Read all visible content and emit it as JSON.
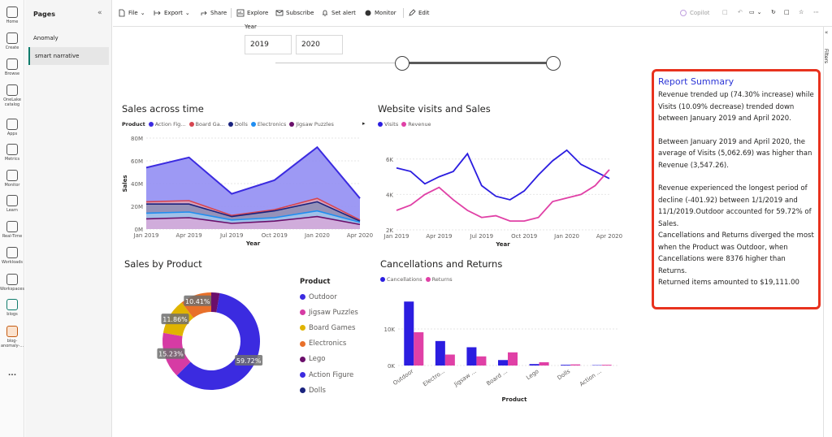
{
  "rail": [
    {
      "label": "Home",
      "icon": "home-icon"
    },
    {
      "label": "Create",
      "icon": "create-icon"
    },
    {
      "label": "Browse",
      "icon": "browse-icon"
    },
    {
      "label": "OneLake catalog",
      "icon": "onelake-icon"
    },
    {
      "label": "Apps",
      "icon": "apps-icon"
    },
    {
      "label": "Metrics",
      "icon": "metrics-icon"
    },
    {
      "label": "Monitor",
      "icon": "monitor-icon"
    },
    {
      "label": "Learn",
      "icon": "learn-icon"
    },
    {
      "label": "Real-Time",
      "icon": "realtime-icon"
    },
    {
      "label": "Workloads",
      "icon": "workloads-icon"
    },
    {
      "label": "Workspaces",
      "icon": "workspaces-icon"
    },
    {
      "label": "blogs",
      "icon": "blogs-icon"
    },
    {
      "label": "blog-anomaly-...",
      "icon": "report-icon"
    },
    {
      "label": "...",
      "icon": "more-icon"
    }
  ],
  "pages": {
    "title": "Pages",
    "items": [
      "Anomaly",
      "smart narrative"
    ],
    "active": 1
  },
  "toolbar": {
    "file": "File",
    "export": "Export",
    "share": "Share",
    "explore": "Explore",
    "subscribe": "Subscribe",
    "set_alert": "Set alert",
    "monitor": "Monitor",
    "edit": "Edit",
    "copilot": "Copilot"
  },
  "filters_label": "Filters",
  "year_slicer": {
    "label": "Year",
    "from": "2019",
    "to": "2020"
  },
  "sales_time": {
    "title": "Sales across time",
    "legend_title": "Product",
    "legend": [
      {
        "name": "Action Fig...",
        "color": "#3b2be0"
      },
      {
        "name": "Board Ga...",
        "color": "#d64550"
      },
      {
        "name": "Dolls",
        "color": "#1a237e"
      },
      {
        "name": "Electronics",
        "color": "#1f8ef1"
      },
      {
        "name": "Jigsaw Puzzles",
        "color": "#6a0f6a"
      }
    ],
    "ylabel": "Sales",
    "xlabel": "Year",
    "yticks": [
      "80M",
      "60M",
      "40M",
      "20M",
      "0M"
    ],
    "xticks": [
      "Jan 2019",
      "Apr 2019",
      "Jul 2019",
      "Oct 2019",
      "Jan 2020",
      "Apr 2020"
    ]
  },
  "visits_sales": {
    "title": "Website visits and Sales",
    "legend": [
      {
        "name": "Visits",
        "color": "#2b1de0"
      },
      {
        "name": "Revenue",
        "color": "#e040a6"
      }
    ],
    "yticks": [
      "6K",
      "4K",
      "2K"
    ],
    "xticks": [
      "Jan 2019",
      "Apr 2019",
      "Jul 2019",
      "Oct 2019",
      "Jan 2020",
      "Apr 2020"
    ],
    "xlabel": "Year"
  },
  "sales_product": {
    "title": "Sales by Product",
    "legend_title": "Product",
    "legend": [
      {
        "name": "Outdoor",
        "color": "#3b2be0"
      },
      {
        "name": "Jigsaw Puzzles",
        "color": "#d63ba4"
      },
      {
        "name": "Board Games",
        "color": "#e0b400"
      },
      {
        "name": "Electronics",
        "color": "#e8702a"
      },
      {
        "name": "Lego",
        "color": "#6b0f6b"
      },
      {
        "name": "Action Figure",
        "color": "#3b2be0"
      },
      {
        "name": "Dolls",
        "color": "#1a237e"
      }
    ],
    "slice_labels": [
      "59.72%",
      "15.23%",
      "11.86%",
      "10.41%"
    ]
  },
  "cancellations": {
    "title": "Cancellations and Returns",
    "legend": [
      {
        "name": "Cancellations",
        "color": "#2b1de0"
      },
      {
        "name": "Returns",
        "color": "#e040a6"
      }
    ],
    "yticks": [
      "10K",
      "0K"
    ],
    "xticks": [
      "Outdoor",
      "Electro...",
      "Jigsaw ...",
      "Board ...",
      "Lego",
      "Dolls",
      "Action ..."
    ],
    "xlabel": "Product"
  },
  "summary": {
    "title": "Report Summary",
    "p1": "Revenue trended up (74.30% increase) while Visits (10.09% decrease) trended down between January 2019 and April 2020.",
    "p2": "Between January 2019 and April 2020, the average of Visits (5,062.69) was higher than Revenue (3,547.26).",
    "p3": "Revenue experienced the longest period of decline (-401.92) between 1/1/2019 and 11/1/2019.Outdoor accounted for 59.72% of Sales.",
    "p4": "Cancellations and Returns diverged the most when the Product was Outdoor, when Cancellations were 8376 higher than Returns.",
    "p5": "Returned items amounted to $19,111.00"
  },
  "chart_data": [
    {
      "type": "area",
      "title": "Sales across time",
      "xlabel": "Year",
      "ylabel": "Sales",
      "ylim": [
        0,
        80000000
      ],
      "x": [
        "Jan 2019",
        "Apr 2019",
        "Jul 2019",
        "Oct 2019",
        "Jan 2020",
        "Apr 2020"
      ],
      "series": [
        {
          "name": "Action Fig...",
          "values": [
            54000000,
            63000000,
            31000000,
            43000000,
            72000000,
            27000000
          ]
        },
        {
          "name": "Board Ga...",
          "values": [
            24000000,
            25000000,
            12000000,
            17000000,
            27000000,
            8000000
          ]
        },
        {
          "name": "Dolls",
          "values": [
            22000000,
            22000000,
            11000000,
            16000000,
            24000000,
            7000000
          ]
        },
        {
          "name": "Electronics",
          "values": [
            14000000,
            15000000,
            8000000,
            10000000,
            16000000,
            6000000
          ]
        },
        {
          "name": "Jigsaw Puzzles",
          "values": [
            9000000,
            10000000,
            5000000,
            7000000,
            11000000,
            4000000
          ]
        }
      ]
    },
    {
      "type": "line",
      "title": "Website visits and Sales",
      "xlabel": "Year",
      "ylim": [
        2000,
        7000
      ],
      "x": [
        "Jan 2019",
        "Feb 2019",
        "Mar 2019",
        "Apr 2019",
        "May 2019",
        "Jun 2019",
        "Jul 2019",
        "Aug 2019",
        "Sep 2019",
        "Oct 2019",
        "Nov 2019",
        "Dec 2019",
        "Jan 2020",
        "Feb 2020",
        "Mar 2020",
        "Apr 2020"
      ],
      "series": [
        {
          "name": "Visits",
          "values": [
            5500,
            5300,
            4600,
            5000,
            5300,
            6300,
            4500,
            3900,
            3700,
            4200,
            5100,
            5900,
            6500,
            5700,
            5300,
            4900
          ]
        },
        {
          "name": "Revenue",
          "values": [
            3100,
            3400,
            4000,
            4400,
            3700,
            3100,
            2700,
            2800,
            2500,
            2500,
            2700,
            3600,
            3800,
            4000,
            4500,
            5400
          ]
        }
      ]
    },
    {
      "type": "pie",
      "title": "Sales by Product",
      "categories": [
        "Outdoor",
        "Jigsaw Puzzles",
        "Board Games",
        "Electronics",
        "Lego"
      ],
      "values": [
        59.72,
        15.23,
        11.86,
        10.41,
        2.78
      ]
    },
    {
      "type": "bar",
      "title": "Cancellations and Returns",
      "xlabel": "Product",
      "ylim": [
        0,
        20000
      ],
      "categories": [
        "Outdoor",
        "Electro...",
        "Jigsaw ...",
        "Board ...",
        "Lego",
        "Dolls",
        "Action ..."
      ],
      "series": [
        {
          "name": "Cancellations",
          "values": [
            17500,
            6700,
            5000,
            1500,
            400,
            200,
            100
          ]
        },
        {
          "name": "Returns",
          "values": [
            9100,
            3000,
            2500,
            3600,
            900,
            300,
            200
          ]
        }
      ]
    }
  ]
}
